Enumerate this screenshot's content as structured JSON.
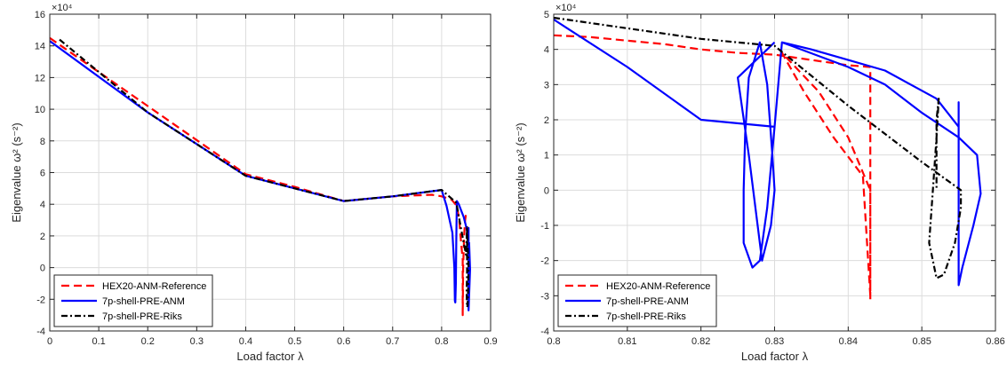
{
  "chart_data": [
    {
      "type": "line",
      "xlabel": "Load factor λ",
      "ylabel": "Eigenvalue ω² (s⁻²)",
      "y_multiplier": "×10⁴",
      "xlim": [
        0,
        0.9
      ],
      "ylim": [
        -4,
        16
      ],
      "xticks": [
        "0",
        "0.1",
        "0.2",
        "0.3",
        "0.4",
        "0.5",
        "0.6",
        "0.7",
        "0.8",
        "0.9"
      ],
      "yticks": [
        "-4",
        "-2",
        "0",
        "2",
        "4",
        "6",
        "8",
        "10",
        "12",
        "14",
        "16"
      ],
      "grid": true,
      "legend": "bottom-left",
      "series": [
        {
          "name": "HEX20-ANM-Reference",
          "color": "#ff0000",
          "dash": "dashed",
          "x": [
            0,
            0.2,
            0.4,
            0.5,
            0.6,
            0.7,
            0.78,
            0.8,
            0.82,
            0.831,
            0.836,
            0.84,
            0.843,
            0.843,
            0.844,
            0.846,
            0.848,
            0.85,
            0.852
          ],
          "y": [
            14.5,
            10.2,
            5.9,
            5.1,
            4.2,
            4.5,
            4.6,
            4.5,
            4.3,
            3.9,
            3.0,
            1.5,
            0.5,
            -3.0,
            0.0,
            2.0,
            3.0,
            3.4,
            3.5
          ]
        },
        {
          "name": "7p-shell-PRE-ANM",
          "color": "#0000ff",
          "dash": "solid",
          "x": [
            0,
            0.2,
            0.4,
            0.5,
            0.6,
            0.7,
            0.8,
            0.81,
            0.822,
            0.826,
            0.827,
            0.828,
            0.829,
            0.83,
            0.831,
            0.835,
            0.84,
            0.845,
            0.85,
            0.855,
            0.855,
            0.855,
            0.857,
            0.858,
            0.857,
            0.856
          ],
          "y": [
            14.3,
            9.8,
            5.8,
            5.0,
            4.2,
            4.5,
            4.9,
            3.9,
            2.2,
            0.0,
            -2.1,
            -2.2,
            -1.0,
            1.8,
            4.2,
            4.0,
            3.6,
            3.2,
            2.6,
            1.8,
            2.5,
            -2.7,
            -1.0,
            -0.1,
            0.8,
            1.6
          ]
        },
        {
          "name": "7p-shell-PRE-Riks",
          "color": "#000000",
          "dash": "dashdot",
          "x": [
            0.02,
            0.2,
            0.4,
            0.5,
            0.6,
            0.7,
            0.8,
            0.83,
            0.84,
            0.85,
            0.852,
            0.852,
            0.851,
            0.852,
            0.853,
            0.854,
            0.855,
            0.853,
            0.852
          ],
          "y": [
            14.4,
            9.8,
            5.8,
            5.0,
            4.2,
            4.5,
            4.9,
            4.1,
            2.4,
            0.8,
            2.6,
            -0.5,
            -1.5,
            -2.5,
            -2.4,
            -1.5,
            0.0,
            1.5,
            2.6
          ]
        }
      ]
    },
    {
      "type": "line",
      "xlabel": "Load factor λ",
      "ylabel": "Eigenvalue ω² (s⁻²)",
      "y_multiplier": "×10⁴",
      "xlim": [
        0.8,
        0.86
      ],
      "ylim": [
        -4,
        5
      ],
      "xticks": [
        "0.8",
        "0.81",
        "0.82",
        "0.83",
        "0.84",
        "0.85",
        "0.86"
      ],
      "yticks": [
        "-4",
        "-3",
        "-2",
        "-1",
        "0",
        "1",
        "2",
        "3",
        "4",
        "5"
      ],
      "grid": true,
      "legend": "bottom-left",
      "series": [
        {
          "name": "HEX20-ANM-Reference",
          "color": "#ff0000",
          "dash": "dashed",
          "x": [
            0.8,
            0.805,
            0.81,
            0.815,
            0.82,
            0.825,
            0.83,
            0.835,
            0.84,
            0.843,
            0.843,
            0.843,
            0.842,
            0.838,
            0.834,
            0.831,
            0.836,
            0.84,
            0.842,
            0.843,
            0.843
          ],
          "y": [
            4.4,
            4.35,
            4.25,
            4.15,
            4.0,
            3.9,
            3.85,
            3.7,
            3.55,
            3.5,
            0.0,
            -3.0,
            0.4,
            1.5,
            2.8,
            3.9,
            2.8,
            1.5,
            0.5,
            0.0,
            -3.1
          ]
        },
        {
          "name": "7p-shell-PRE-ANM",
          "color": "#0000ff",
          "dash": "solid",
          "x": [
            0.8,
            0.81,
            0.82,
            0.83,
            0.831,
            0.84,
            0.845,
            0.85,
            0.855,
            0.8575,
            0.858,
            0.857,
            0.8555,
            0.855,
            0.855,
            0.855,
            0.855,
            0.852,
            0.845,
            0.84,
            0.835,
            0.831,
            0.83,
            0.829,
            0.828,
            0.827,
            0.8258,
            0.8258,
            0.826,
            0.8265,
            0.828,
            0.829,
            0.8297,
            0.83,
            0.8295,
            0.8283,
            0.8265,
            0.825,
            0.83
          ],
          "y": [
            4.85,
            3.5,
            2.0,
            1.8,
            4.2,
            3.5,
            3.0,
            2.2,
            1.5,
            1.0,
            -0.1,
            -1.0,
            -2.2,
            -2.7,
            1.0,
            2.5,
            1.8,
            2.6,
            3.4,
            3.7,
            4.0,
            4.2,
            1.8,
            -0.5,
            -2.0,
            -2.2,
            -1.5,
            0.0,
            1.6,
            3.2,
            4.2,
            3.0,
            1.0,
            0.0,
            -1.0,
            -2.0,
            1.0,
            3.2,
            4.2
          ]
        },
        {
          "name": "7p-shell-PRE-Riks",
          "color": "#000000",
          "dash": "dashdot",
          "x": [
            0.8,
            0.81,
            0.82,
            0.83,
            0.84,
            0.85,
            0.8553,
            0.8553,
            0.8545,
            0.853,
            0.852,
            0.8515,
            0.851,
            0.8515,
            0.852,
            0.8523,
            0.852,
            0.852
          ],
          "y": [
            4.9,
            4.6,
            4.3,
            4.1,
            2.4,
            0.8,
            0.0,
            -0.5,
            -1.5,
            -2.4,
            -2.5,
            -2.0,
            -1.5,
            0.0,
            1.5,
            2.6,
            2.0,
            0.0
          ]
        }
      ]
    }
  ]
}
